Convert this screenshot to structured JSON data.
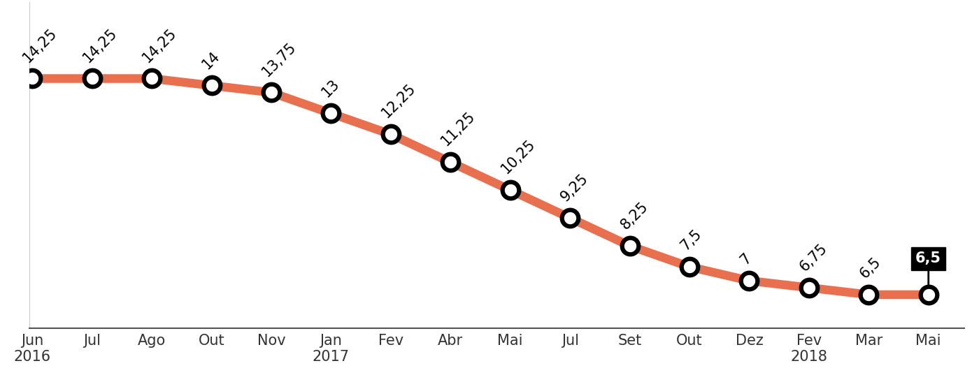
{
  "chart_data": {
    "type": "line",
    "categories": [
      "Jun\n2016",
      "Jul",
      "Ago",
      "Out",
      "Nov",
      "Jan\n2017",
      "Fev",
      "Abr",
      "Mai",
      "Jul",
      "Set",
      "Out",
      "Dez",
      "Fev\n2018",
      "Mar",
      "Mai"
    ],
    "values": [
      14.25,
      14.25,
      14.25,
      14,
      13.75,
      13,
      12.25,
      11.25,
      10.25,
      9.25,
      8.25,
      7.5,
      7,
      6.75,
      6.5,
      6.5
    ],
    "value_labels": [
      "14,25",
      "14,25",
      "14,25",
      "14",
      "13,75",
      "13",
      "12,25",
      "11,25",
      "10,25",
      "9,25",
      "8,25",
      "7,5",
      "7",
      "6,75",
      "6,5",
      "6,5"
    ],
    "color": "#e8704f",
    "marker": "o",
    "line_style": "solid",
    "ylim": [
      5.3,
      17
    ],
    "data_labels": true,
    "grid": false,
    "tick_labels": "x"
  }
}
